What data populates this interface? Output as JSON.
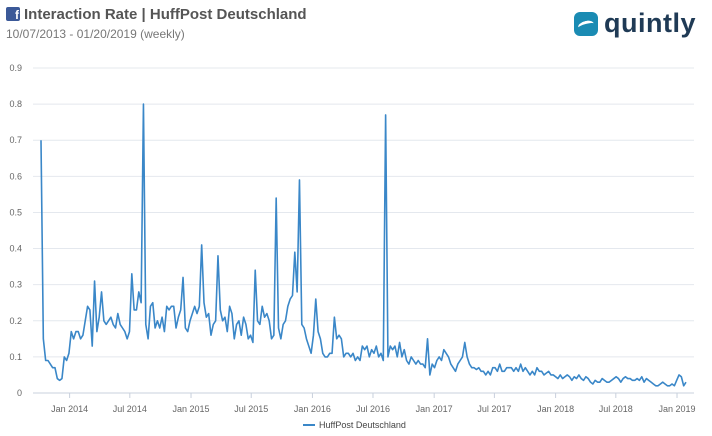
{
  "header": {
    "icon": "facebook-icon",
    "title": "Interaction Rate | HuffPost Deutschland",
    "subtitle": "10/07/2013 - 01/20/2019 (weekly)"
  },
  "logo": {
    "text": "quintly",
    "icon": "quintly-logo-icon",
    "color": "#1a8bb3"
  },
  "chart_data": {
    "type": "line",
    "title": "Interaction Rate | HuffPost Deutschland",
    "xlabel": "",
    "ylabel": "",
    "ylim": [
      0,
      0.9
    ],
    "y_ticks": [
      "0",
      "0.1",
      "0.2",
      "0.3",
      "0.4",
      "0.5",
      "0.6",
      "0.7",
      "0.8",
      "0.9"
    ],
    "x_ticks": [
      "Jan 2014",
      "Jul 2014",
      "Jan 2015",
      "Jul 2015",
      "Jan 2016",
      "Jul 2016",
      "Jan 2017",
      "Jul 2017",
      "Jan 2018",
      "Jul 2018",
      "Jan 2019"
    ],
    "legend": [
      "HuffPost Deutschland"
    ],
    "legend_position": "bottom-center",
    "series": [
      {
        "name": "HuffPost Deutschland",
        "color": "#3a87c8",
        "start_date": "2013-10-07",
        "interval": "weekly",
        "values": [
          0.7,
          0.15,
          0.09,
          0.09,
          0.08,
          0.07,
          0.07,
          0.04,
          0.035,
          0.04,
          0.1,
          0.09,
          0.11,
          0.17,
          0.15,
          0.17,
          0.17,
          0.15,
          0.16,
          0.2,
          0.24,
          0.23,
          0.13,
          0.31,
          0.17,
          0.21,
          0.28,
          0.2,
          0.19,
          0.2,
          0.21,
          0.19,
          0.18,
          0.22,
          0.19,
          0.18,
          0.17,
          0.15,
          0.17,
          0.33,
          0.23,
          0.23,
          0.28,
          0.25,
          0.8,
          0.19,
          0.15,
          0.24,
          0.25,
          0.18,
          0.2,
          0.18,
          0.21,
          0.17,
          0.24,
          0.23,
          0.24,
          0.24,
          0.18,
          0.21,
          0.23,
          0.32,
          0.18,
          0.17,
          0.2,
          0.22,
          0.24,
          0.22,
          0.24,
          0.41,
          0.25,
          0.21,
          0.22,
          0.16,
          0.19,
          0.2,
          0.38,
          0.23,
          0.2,
          0.21,
          0.17,
          0.24,
          0.22,
          0.15,
          0.19,
          0.2,
          0.16,
          0.21,
          0.19,
          0.15,
          0.16,
          0.14,
          0.34,
          0.2,
          0.19,
          0.24,
          0.21,
          0.22,
          0.2,
          0.15,
          0.16,
          0.54,
          0.18,
          0.15,
          0.19,
          0.2,
          0.24,
          0.26,
          0.27,
          0.39,
          0.28,
          0.59,
          0.19,
          0.18,
          0.15,
          0.13,
          0.11,
          0.16,
          0.26,
          0.17,
          0.15,
          0.11,
          0.1,
          0.1,
          0.11,
          0.11,
          0.21,
          0.15,
          0.16,
          0.15,
          0.1,
          0.11,
          0.11,
          0.1,
          0.11,
          0.09,
          0.1,
          0.09,
          0.13,
          0.12,
          0.13,
          0.1,
          0.12,
          0.11,
          0.13,
          0.1,
          0.11,
          0.09,
          0.77,
          0.1,
          0.13,
          0.12,
          0.13,
          0.1,
          0.14,
          0.1,
          0.12,
          0.09,
          0.08,
          0.1,
          0.09,
          0.08,
          0.09,
          0.08,
          0.08,
          0.07,
          0.15,
          0.05,
          0.08,
          0.07,
          0.09,
          0.1,
          0.09,
          0.12,
          0.11,
          0.1,
          0.08,
          0.07,
          0.06,
          0.08,
          0.09,
          0.1,
          0.14,
          0.1,
          0.08,
          0.07,
          0.07,
          0.065,
          0.07,
          0.06,
          0.06,
          0.05,
          0.06,
          0.05,
          0.07,
          0.07,
          0.06,
          0.08,
          0.06,
          0.06,
          0.07,
          0.07,
          0.07,
          0.06,
          0.07,
          0.06,
          0.08,
          0.06,
          0.07,
          0.06,
          0.05,
          0.06,
          0.05,
          0.07,
          0.06,
          0.06,
          0.05,
          0.055,
          0.06,
          0.05,
          0.05,
          0.045,
          0.04,
          0.05,
          0.04,
          0.045,
          0.05,
          0.045,
          0.035,
          0.045,
          0.04,
          0.05,
          0.04,
          0.035,
          0.045,
          0.04,
          0.03,
          0.025,
          0.035,
          0.03,
          0.03,
          0.04,
          0.035,
          0.03,
          0.03,
          0.035,
          0.04,
          0.045,
          0.04,
          0.03,
          0.04,
          0.045,
          0.04,
          0.04,
          0.035,
          0.035,
          0.04,
          0.035,
          0.045,
          0.03,
          0.04,
          0.035,
          0.03,
          0.025,
          0.02,
          0.02,
          0.025,
          0.03,
          0.025,
          0.02,
          0.02,
          0.025,
          0.02,
          0.035,
          0.05,
          0.045,
          0.02,
          0.03
        ]
      }
    ]
  }
}
